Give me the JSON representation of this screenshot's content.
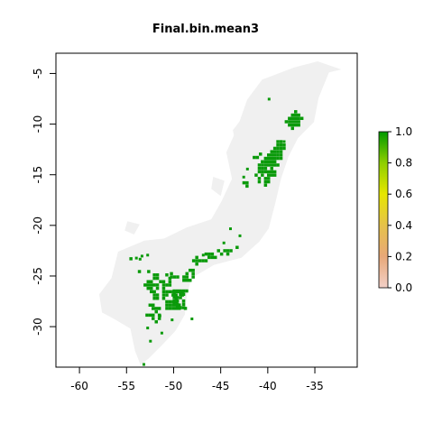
{
  "chart_data": {
    "type": "heatmap",
    "title": "Final.bin.mean3",
    "xlabel": "",
    "ylabel": "",
    "xlim": [
      -62.5,
      -30.5
    ],
    "ylim": [
      -34,
      -3
    ],
    "x_ticks": [
      -60,
      -55,
      -50,
      -45,
      -40,
      -35
    ],
    "y_ticks": [
      -5,
      -10,
      -15,
      -20,
      -25,
      -30
    ],
    "x_tick_labels": [
      "-60",
      "-55",
      "-50",
      "-45",
      "-40",
      "-35"
    ],
    "y_tick_labels": [
      "-5",
      "-10",
      "-15",
      "-20",
      "-25",
      "-30"
    ],
    "colorbar": {
      "min": 0.0,
      "max": 1.0,
      "ticks": [
        "0.0",
        "0.2",
        "0.4",
        "0.6",
        "0.8",
        "1.0"
      ],
      "colors": [
        "#f2d0c8",
        "#e8a878",
        "#e6c24a",
        "#e6e600",
        "#8fcf00",
        "#009900"
      ]
    },
    "colors": {
      "background_land": "#f0f0f0",
      "presence": "#0a9a0a"
    }
  }
}
